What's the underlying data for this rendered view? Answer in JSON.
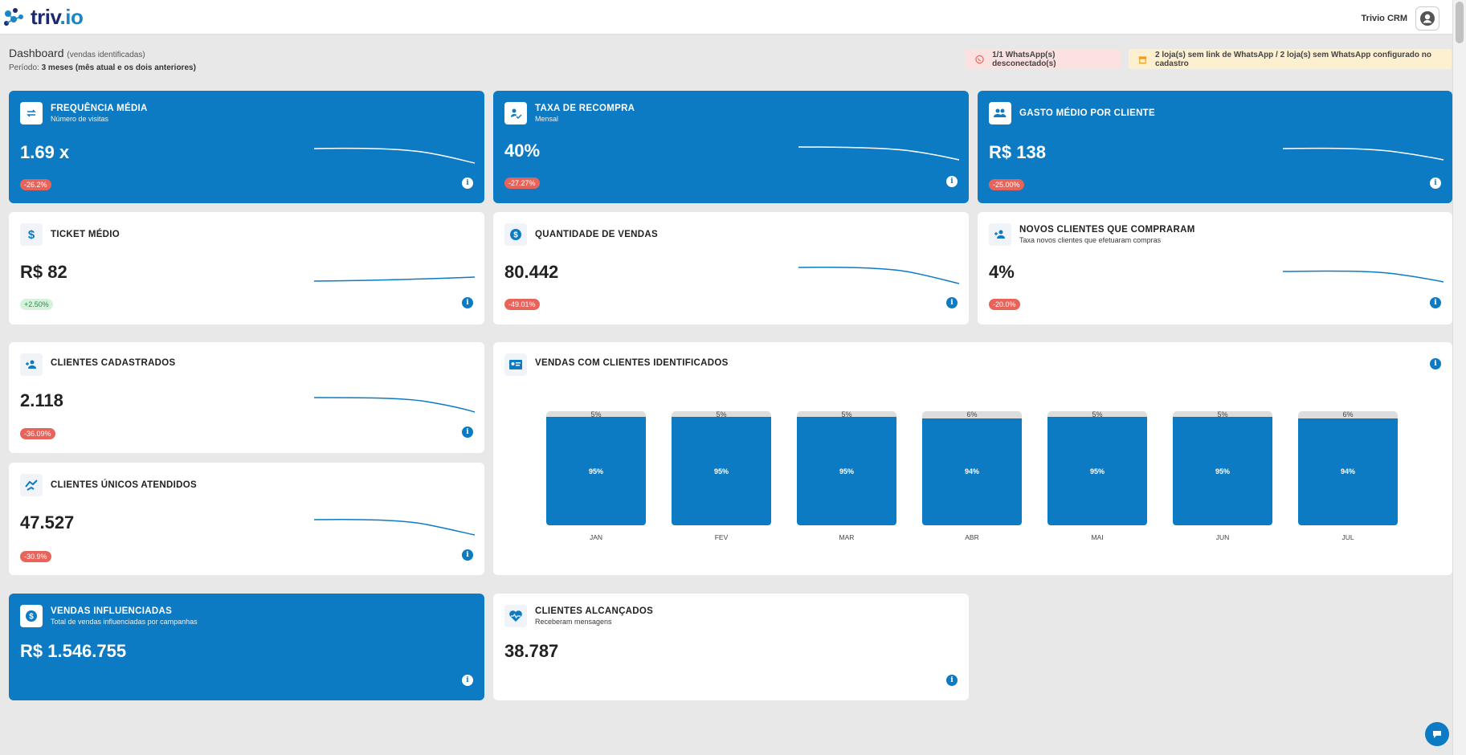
{
  "header": {
    "logo_main": "triv",
    "logo_dot": ".io",
    "user_name": "Trivio CRM"
  },
  "dashboard": {
    "title": "Dashboard",
    "subtitle": "(vendas identificadas)",
    "period_label": "Período:",
    "period_value": "3 meses (mês atual e os dois anteriores)"
  },
  "alerts": {
    "whatsapp": "1/1 WhatsApp(s) desconectado(s)",
    "stores": "2 loja(s) sem link de WhatsApp / 2 loja(s) sem WhatsApp configurado no cadastro"
  },
  "cards": {
    "frequencia": {
      "title": "FREQUÊNCIA MÉDIA",
      "subtitle": "Número de visitas",
      "value": "1.69 x",
      "change": "-26.2%"
    },
    "recompra": {
      "title": "TAXA DE RECOMPRA",
      "subtitle": "Mensal",
      "value": "40%",
      "change": "-27.27%"
    },
    "gasto": {
      "title": "GASTO MÉDIO POR CLIENTE",
      "value": "R$ 138",
      "change": "-25.00%"
    },
    "ticket": {
      "title": "TICKET MÉDIO",
      "value": "R$ 82",
      "change": "+2.50%"
    },
    "quantidade": {
      "title": "QUANTIDADE DE VENDAS",
      "value": "80.442",
      "change": "-49.01%"
    },
    "novos": {
      "title": "NOVOS CLIENTES QUE COMPRARAM",
      "subtitle": "Taxa novos clientes que efetuaram compras",
      "value": "4%",
      "change": "-20.0%"
    },
    "cadastrados": {
      "title": "CLIENTES CADASTRADOS",
      "value": "2.118",
      "change": "-36.09%"
    },
    "unicos": {
      "title": "CLIENTES ÚNICOS ATENDIDOS",
      "value": "47.527",
      "change": "-30.9%"
    },
    "influenciadas": {
      "title": "VENDAS INFLUENCIADAS",
      "subtitle": "Total de vendas influenciadas por campanhas",
      "value": "R$ 1.546.755"
    },
    "alcancados": {
      "title": "CLIENTES ALCANÇADOS",
      "subtitle": "Receberam mensagens",
      "value": "38.787"
    }
  },
  "info_glyph": "i",
  "chart_data": {
    "type": "bar",
    "title": "VENDAS COM CLIENTES IDENTIFICADOS",
    "categories": [
      "JAN",
      "FEV",
      "MAR",
      "ABR",
      "MAI",
      "JUN",
      "JUL"
    ],
    "series": [
      {
        "values": [
          95,
          95,
          95,
          94,
          95,
          95,
          94
        ],
        "labels": [
          "95%",
          "95%",
          "95%",
          "94%",
          "95%",
          "95%",
          "94%"
        ]
      },
      {
        "values": [
          5,
          5,
          5,
          6,
          5,
          5,
          6
        ],
        "labels": [
          "5%",
          "5%",
          "5%",
          "6%",
          "5%",
          "5%",
          "6%"
        ]
      }
    ],
    "stacked": true
  },
  "colors": {
    "primary": "#0c7bc4",
    "negative": "#e8645a",
    "positive_bg": "#d6f1dc",
    "background": "#e8e8e8"
  }
}
